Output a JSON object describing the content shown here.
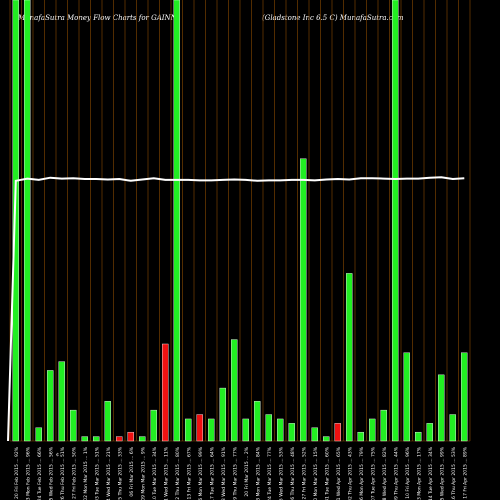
{
  "header": {
    "title_left": "MunafaSutra  Money Flow  Charts for GAINN",
    "title_right": "(Gladstone   Inc    6.5  C)  MunafaSutra.com"
  },
  "small_mark": "¢",
  "colors": {
    "background": "#000000",
    "up": "#22ee22",
    "down": "#ee1111",
    "grid": "#8a4a00",
    "line": "#ffffff"
  },
  "chart_data": {
    "type": "bar",
    "title": "MunafaSutra  Money Flow  Charts for GAINN",
    "subtitle": "(Gladstone   Inc    6.5  C)  MunafaSutra.com",
    "categories": [
      "20 Fri Feb 2015 ... 92%",
      "23 Mon Feb 2015 ... 96%",
      "24 Tue Feb 2015 ... 66%",
      "25 Wed Feb 2015 ... 56%",
      "26 Thu Feb 2015 ... 51%",
      "27 Fri Feb 2015 ... 50%",
      "02 Mon Mar 2015 ... 1%",
      "03 Tue Mar 2015 ... 51%",
      "04 Wed Mar 2015 ... 21%",
      "05 Thu Mar 2015 ... 33%",
      "06 Fri Mar 2015 ... 6%",
      "09 Mon Mar 2015 ... 9%",
      "10 Tue Mar 2015 ... 34%",
      "11 Wed Mar 2015 ... 11%",
      "12 Thu Mar 2015 ... 80%",
      "13 Fri Mar 2015 ... 67%",
      "16 Mon Mar 2015 ... 99%",
      "17 Tue Mar 2015 ... 64%",
      "18 Wed Mar 2015 ... 91%",
      "19 Thu Mar 2015 ... 77%",
      "20 Fri Mar 2015 ... 2%",
      "23 Mon Mar 2015 ... 84%",
      "24 Tue Mar 2015 ... 77%",
      "25 Wed Mar 2015 ... 53%",
      "26 Thu Mar 2015 ... 48%",
      "27 Fri Mar 2015 ... 52%",
      "30 Mon Mar 2015 ... 15%",
      "31 Tue Mar 2015 ... 60%",
      "01 Wed Apr 2015 ... 65%",
      "02 Thu Apr 2015 ... 43%",
      "06 Mon Apr 2015 ... 79%",
      "07 Tue Apr 2015 ... 75%",
      "08 Wed Apr 2015 ... 82%",
      "09 Thu Apr 2015 ... 44%",
      "10 Fri Apr 2015 ... 96%",
      "13 Mon Apr 2015 ... 17%",
      "14 Tue Apr 2015 ... 34%",
      "15 Wed Apr 2015 ... 99%",
      "16 Thu Apr 2015 ... 53%",
      "17 Fri Apr 2015 ... 89%"
    ],
    "series": [
      {
        "kind": "bars",
        "values": [
          100,
          100,
          3,
          16,
          18,
          7,
          1,
          1,
          9,
          1,
          2,
          1,
          7,
          22,
          100,
          5,
          6,
          5,
          12,
          23,
          5,
          9,
          6,
          5,
          4,
          64,
          3,
          1,
          4,
          38,
          2,
          5,
          7,
          100,
          20,
          2,
          4,
          15,
          6,
          20
        ],
        "directions": [
          "up",
          "up",
          "up",
          "up",
          "up",
          "up",
          "up",
          "up",
          "up",
          "down",
          "down",
          "up",
          "up",
          "down",
          "up",
          "up",
          "down",
          "up",
          "up",
          "up",
          "up",
          "up",
          "up",
          "up",
          "up",
          "up",
          "up",
          "up",
          "down",
          "up",
          "up",
          "up",
          "up",
          "up",
          "up",
          "up",
          "up",
          "up",
          "up",
          "up"
        ]
      },
      {
        "kind": "line",
        "values": [
          59,
          59.5,
          59.2,
          59.7,
          59.5,
          59.6,
          59.4,
          59.4,
          59.3,
          59.4,
          59,
          59.3,
          59.6,
          59.2,
          59.2,
          59.2,
          59.1,
          59.1,
          59.2,
          59.3,
          59.2,
          59,
          59.1,
          59.1,
          59.2,
          59.2,
          59.1,
          59.3,
          59.4,
          59.3,
          59.6,
          59.6,
          59.5,
          59.4,
          59.5,
          59.5,
          59.7,
          59.8,
          59.4,
          59.6
        ],
        "start_value": 0
      }
    ],
    "ylim": [
      0,
      100
    ],
    "xlabel": "",
    "ylabel": "",
    "grid": true,
    "legend": "none"
  }
}
